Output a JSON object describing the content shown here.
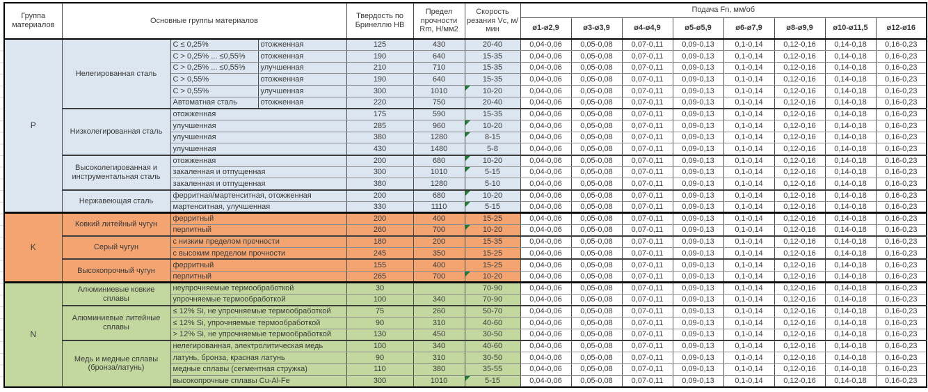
{
  "header": {
    "col_group": "Группа материалов",
    "col_main": "Основные группы материалов",
    "col_hardness": "Твердость по Бринеллю HB",
    "col_strength": "Предел прочности Rm, Н/мм2",
    "col_speed": "Скорость резания Vc, м/мин",
    "col_feed": "Подача Fn, мм/об",
    "feed_columns": [
      "ø1-ø2,9",
      "ø3-ø3,9",
      "ø4-ø4,9",
      "ø5-ø5,9",
      "ø6-ø7,9",
      "ø8-ø9,9",
      "ø10-ø11,5",
      "ø12-ø16"
    ]
  },
  "feed_values": [
    "0,04-0,06",
    "0,05-0,08",
    "0,07-0,11",
    "0,09-0,13",
    "0,1-0,14",
    "0,12-0,16",
    "0,14-0,18",
    "0,16-0,23"
  ],
  "colors": {
    "P": "#dce6f1",
    "K": "#f4a471",
    "N": "#c3d89f",
    "error_indicator": "#1e7b34"
  },
  "groups": [
    {
      "code": "P",
      "subgroups": [
        {
          "name": "Нелегированная сталь",
          "rows": [
            {
              "d1": "C ≤ 0,25%",
              "d2": "отожженная",
              "hb": "125",
              "rm": "430",
              "vc": "20-40"
            },
            {
              "d1": "C > 0,25% ... ≤0,55%",
              "d2": "отожженная",
              "hb": "190",
              "rm": "640",
              "vc": "15-35"
            },
            {
              "d1": "C > 0,25% ... ≤0,55%",
              "d2": "улучшенная",
              "hb": "210",
              "rm": "710",
              "vc": "15-35"
            },
            {
              "d1": "C > 0,55%",
              "d2": "отожженная",
              "hb": "190",
              "rm": "640",
              "vc": "15-35"
            },
            {
              "d1": "C > 0,55%",
              "d2": "улучшенная",
              "hb": "300",
              "rm": "1010",
              "vc": "10-20",
              "flag": true
            },
            {
              "d1": "Автоматная сталь",
              "d2": "отожженная",
              "hb": "220",
              "rm": "750",
              "vc": "20-40"
            }
          ]
        },
        {
          "name": "Низколегированная сталь",
          "rows": [
            {
              "d": "отожженная",
              "hb": "175",
              "rm": "590",
              "vc": "15-35"
            },
            {
              "d": "улучшенная",
              "hb": "285",
              "rm": "960",
              "vc": "10-20",
              "flag": true
            },
            {
              "d": "улучшенная",
              "hb": "380",
              "rm": "1280",
              "vc": "8-15",
              "flag": true
            },
            {
              "d": "улучшенная",
              "hb": "430",
              "rm": "1480",
              "vc": "5-8"
            }
          ]
        },
        {
          "name": "Высоколегированная и инструментальная сталь",
          "rows": [
            {
              "d": "отожженная",
              "hb": "200",
              "rm": "680",
              "vc": "10-20",
              "flag": true
            },
            {
              "d": "закаленная и отпущенная",
              "hb": "300",
              "rm": "1010",
              "vc": "5-15",
              "flag": true
            },
            {
              "d": "закаленная и отпущенная",
              "hb": "380",
              "rm": "1280",
              "vc": "5-10"
            }
          ]
        },
        {
          "name": "Нержавеющая сталь",
          "rows": [
            {
              "d": "ферритная/мартенситная, отожженная",
              "hb": "200",
              "rm": "680",
              "vc": "10-20",
              "flag": true
            },
            {
              "d": "мартенситная, улучшенная",
              "hb": "330",
              "rm": "1110",
              "vc": "5-15",
              "flag": true
            }
          ]
        }
      ]
    },
    {
      "code": "K",
      "subgroups": [
        {
          "name": "Ковкий литейный чугун",
          "rows": [
            {
              "d": "ферритный",
              "hb": "200",
              "rm": "400",
              "vc": "15-25"
            },
            {
              "d": "перлитный",
              "hb": "260",
              "rm": "700",
              "vc": "10-20",
              "flag": true
            }
          ]
        },
        {
          "name": "Серый чугун",
          "rows": [
            {
              "d": "с низким пределом прочности",
              "hb": "180",
              "rm": "200",
              "vc": "15-35"
            },
            {
              "d": "с высоким пределом прочности",
              "hb": "245",
              "rm": "350",
              "vc": "15-25"
            }
          ]
        },
        {
          "name": "Высокопрочный чугун",
          "rows": [
            {
              "d": "ферритный",
              "hb": "155",
              "rm": "400",
              "vc": "15-25"
            },
            {
              "d": "перлитный",
              "hb": "265",
              "rm": "700",
              "vc": "10-20",
              "flag": true
            }
          ]
        }
      ]
    },
    {
      "code": "N",
      "subgroups": [
        {
          "name": "Алюминиевые ковкие сплавы",
          "rows": [
            {
              "d": "неупрочняемые термообработкой",
              "hb": "30",
              "rm": "",
              "vc": "70-90"
            },
            {
              "d": "упрочняемые термообработкой",
              "hb": "100",
              "rm": "340",
              "vc": "70-90"
            }
          ]
        },
        {
          "name": "Алюминиевые литейные сплавы",
          "rows": [
            {
              "d": "≤ 12% Si, не упрочняемые термообработкой",
              "hb": "75",
              "rm": "260",
              "vc": "50-70"
            },
            {
              "d": "≤ 12% Si, упрочняемые термообработкой",
              "hb": "90",
              "rm": "310",
              "vc": "40-60"
            },
            {
              "d": "> 12% Si, не упрочняемые термообработкой",
              "hb": "130",
              "rm": "450",
              "vc": "30-50"
            }
          ]
        },
        {
          "name": "Медь и медные сплавы (бронза/латунь)",
          "rows": [
            {
              "d": "нелегированная, электролитическая медь",
              "hb": "100",
              "rm": "340",
              "vc": "40-60"
            },
            {
              "d": "латунь, бронза, красная латунь",
              "hb": "90",
              "rm": "310",
              "vc": "30-50"
            },
            {
              "d": "медные сплавы (сегментная стружка)",
              "hb": "110",
              "rm": "380",
              "vc": "35-55"
            },
            {
              "d": "высокопрочные сплавы Cu-Al-Fe",
              "hb": "300",
              "rm": "1010",
              "vc": "5-15",
              "flag": true
            }
          ]
        }
      ]
    }
  ]
}
